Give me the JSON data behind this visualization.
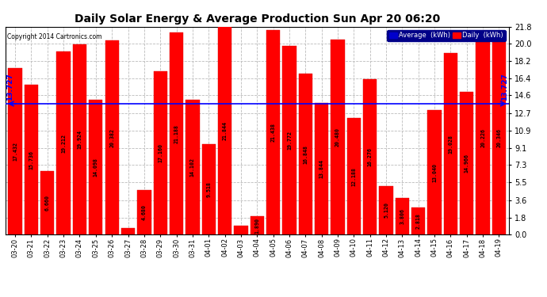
{
  "title": "Daily Solar Energy & Average Production Sun Apr 20 06:20",
  "copyright": "Copyright 2014 Cartronics.com",
  "categories": [
    "03-20",
    "03-21",
    "03-22",
    "03-23",
    "03-24",
    "03-25",
    "03-26",
    "03-27",
    "03-28",
    "03-29",
    "03-30",
    "03-31",
    "04-01",
    "04-02",
    "04-03",
    "04-04",
    "04-05",
    "04-06",
    "04-07",
    "04-08",
    "04-09",
    "04-10",
    "04-11",
    "04-12",
    "04-13",
    "04-14",
    "04-15",
    "04-16",
    "04-17",
    "04-18",
    "04-19"
  ],
  "values": [
    17.432,
    15.736,
    6.66,
    19.212,
    19.924,
    14.098,
    20.382,
    0.664,
    4.68,
    17.16,
    21.188,
    14.102,
    9.518,
    21.844,
    0.932,
    1.89,
    21.438,
    19.772,
    16.848,
    13.844,
    20.48,
    12.188,
    16.276,
    5.12,
    3.806,
    2.818,
    13.04,
    19.028,
    14.966,
    20.226,
    20.346
  ],
  "average": 13.727,
  "bar_color": "#ff0000",
  "average_line_color": "#0000ff",
  "yticks": [
    0.0,
    1.8,
    3.6,
    5.5,
    7.3,
    9.1,
    10.9,
    12.7,
    14.6,
    16.4,
    18.2,
    20.0,
    21.8
  ],
  "ylim": [
    0,
    21.8
  ],
  "background_color": "#ffffff",
  "grid_color": "#bbbbbb",
  "title_fontsize": 10,
  "bar_edge_color": "#dd0000",
  "legend_avg_color": "#0000cc",
  "legend_daily_color": "#ff0000",
  "label_fontsize": 4.8,
  "avg_label": "13.727"
}
